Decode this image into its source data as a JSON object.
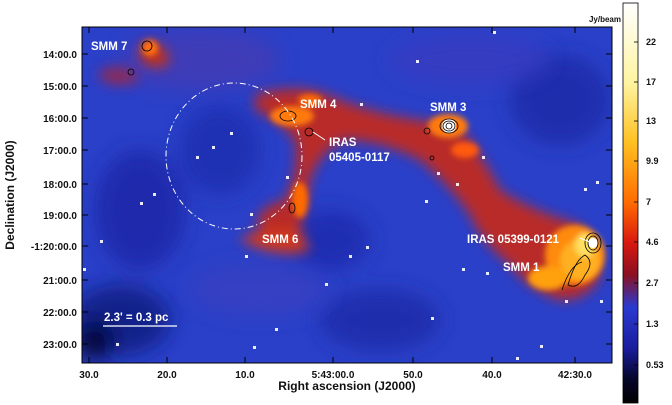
{
  "figure": {
    "xlabel": "Right ascension (J2000)",
    "ylabel": "Declination (J2000)",
    "x_ticks": [
      "30.0",
      "20.0",
      "10.0",
      "5:43:00.0",
      "50.0",
      "40.0",
      "42:30.0"
    ],
    "y_ticks": [
      "14:00.0",
      "15:00.0",
      "16:00.0",
      "17:00.0",
      "18:00.0",
      "19:00.0",
      "-1:20:00.0",
      "21:00.0",
      "22:00.0",
      "23:00.0"
    ],
    "annotations": {
      "smm7": "SMM 7",
      "smm4": "SMM 4",
      "smm3": "SMM 3",
      "iras1_line1": "IRAS",
      "iras1_line2": "05405-0117",
      "smm6": "SMM 6",
      "iras2": "IRAS 05399-0121",
      "smm1": "SMM 1"
    },
    "scalebar_label": "2.3' = 0.3 pc",
    "colorbar": {
      "unit": "Jy/beam",
      "ticks": [
        "22",
        "17",
        "13",
        "9.9",
        "7",
        "4.6",
        "2.7",
        "1.3",
        "0.53"
      ],
      "colors": [
        "#ffffff",
        "#fff26a",
        "#ffb11c",
        "#ff6a00",
        "#e82010",
        "#a8100c",
        "#6a1030",
        "#1a1aa8",
        "#2a50d0",
        "#0a0a3a",
        "#000000"
      ]
    }
  }
}
